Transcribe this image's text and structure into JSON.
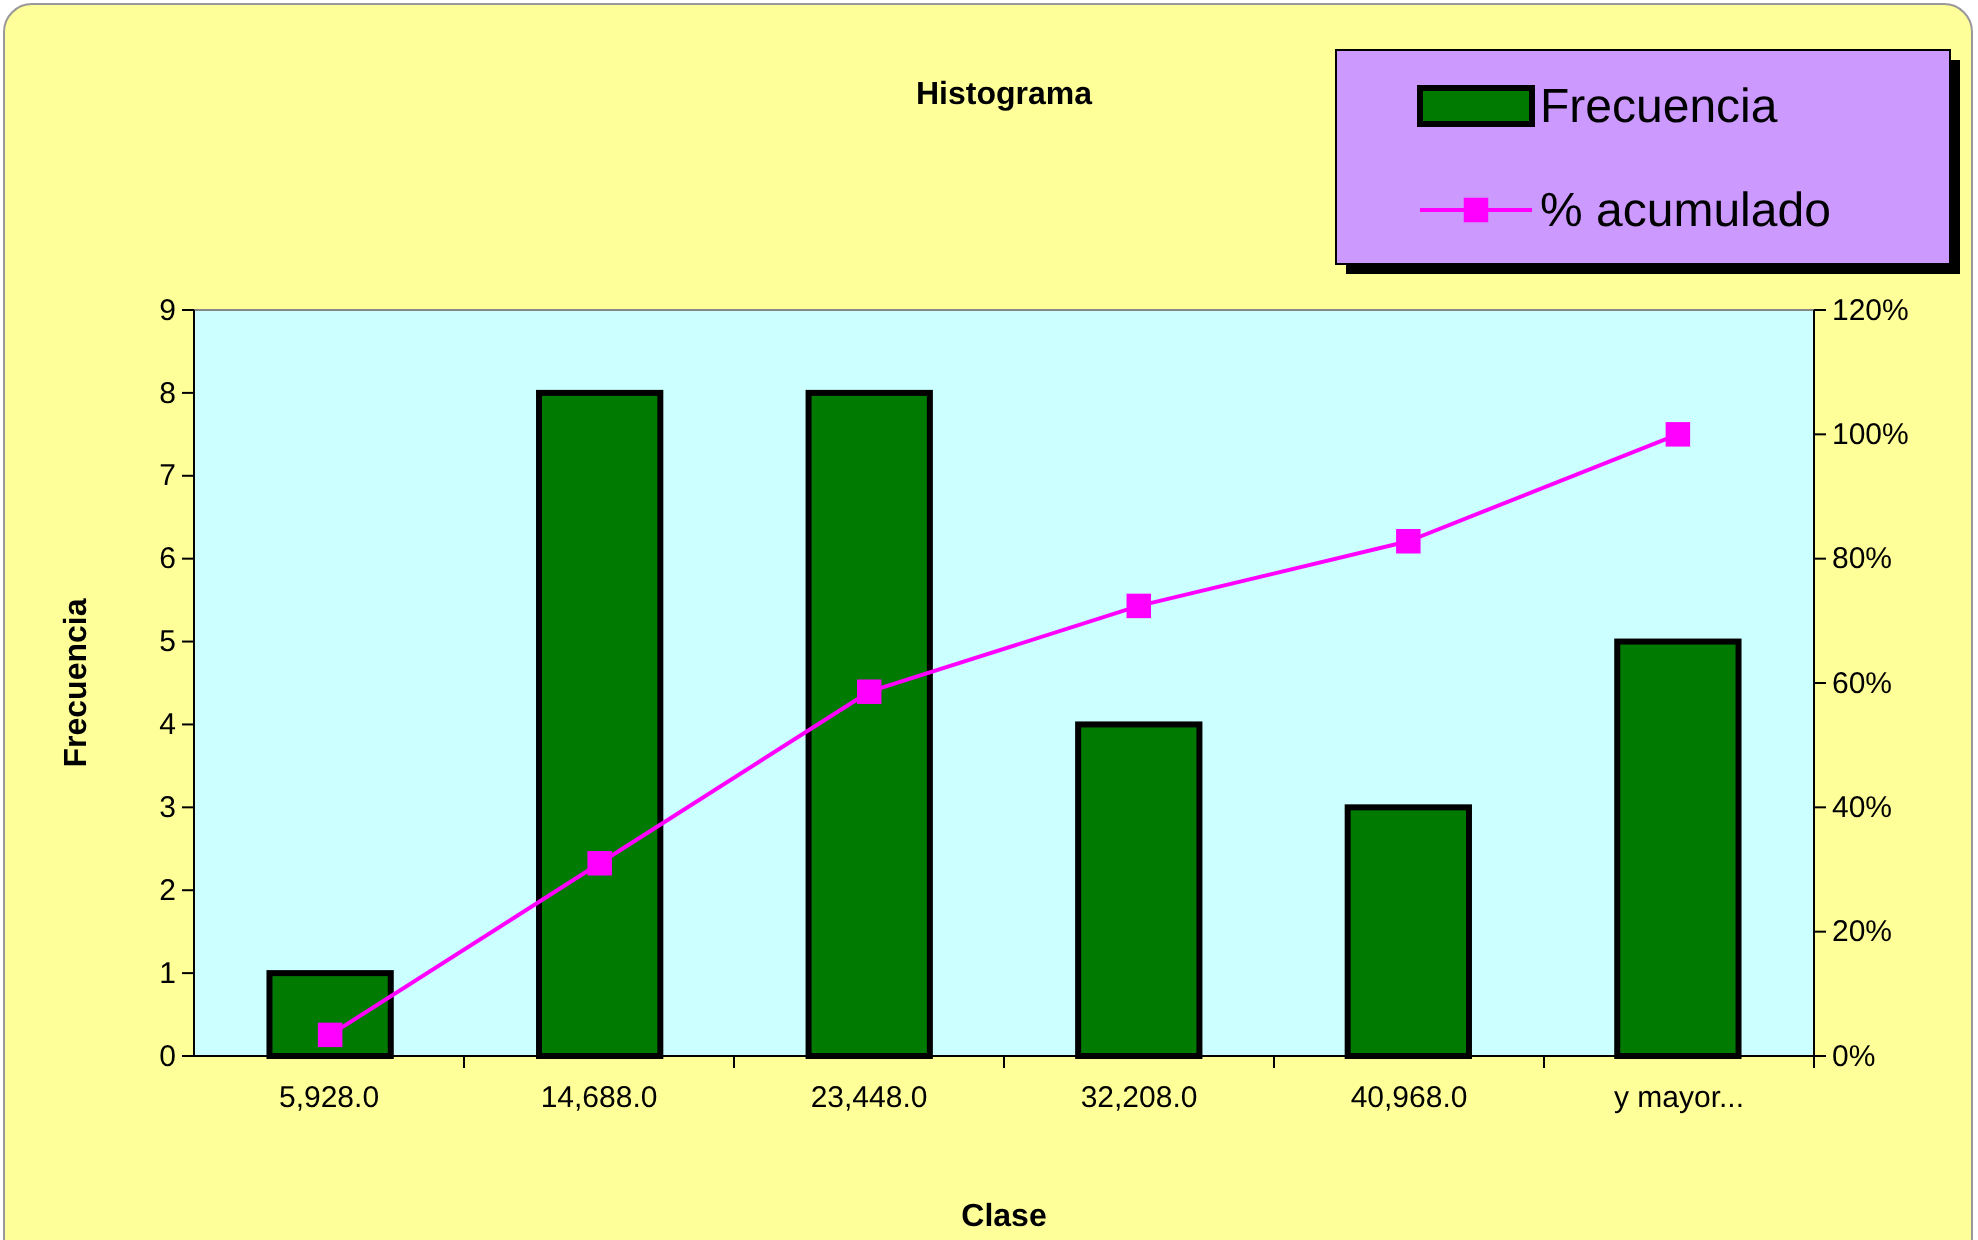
{
  "chart_data": {
    "type": "bar",
    "title": "Histograma",
    "xlabel": "Clase",
    "ylabel": "Frecuencia",
    "categories": [
      "5,928.0",
      "14,688.0",
      "23,448.0",
      "32,208.0",
      "40,968.0",
      "y mayor..."
    ],
    "series": [
      {
        "name": "Frecuencia",
        "color": "#007a00",
        "values": [
          1,
          8,
          8,
          4,
          3,
          5
        ]
      },
      {
        "name": "% acumulado",
        "type": "line",
        "axis": "y2",
        "color": "#ff00ff",
        "marker": "square",
        "values": [
          3.4,
          31.0,
          58.6,
          72.4,
          82.8,
          100
        ]
      }
    ],
    "ylim": [
      0,
      9
    ],
    "yticks": [
      0,
      1,
      2,
      3,
      4,
      5,
      6,
      7,
      8,
      9
    ],
    "y2lim": [
      0,
      120
    ],
    "y2ticks": [
      {
        "value": 0,
        "label": "0%"
      },
      {
        "value": 20,
        "label": "20%"
      },
      {
        "value": 40,
        "label": "40%"
      },
      {
        "value": 60,
        "label": "60%"
      },
      {
        "value": 80,
        "label": "80%"
      },
      {
        "value": 100,
        "label": "100%"
      },
      {
        "value": 120,
        "label": "120%"
      }
    ],
    "legend": "top right"
  }
}
